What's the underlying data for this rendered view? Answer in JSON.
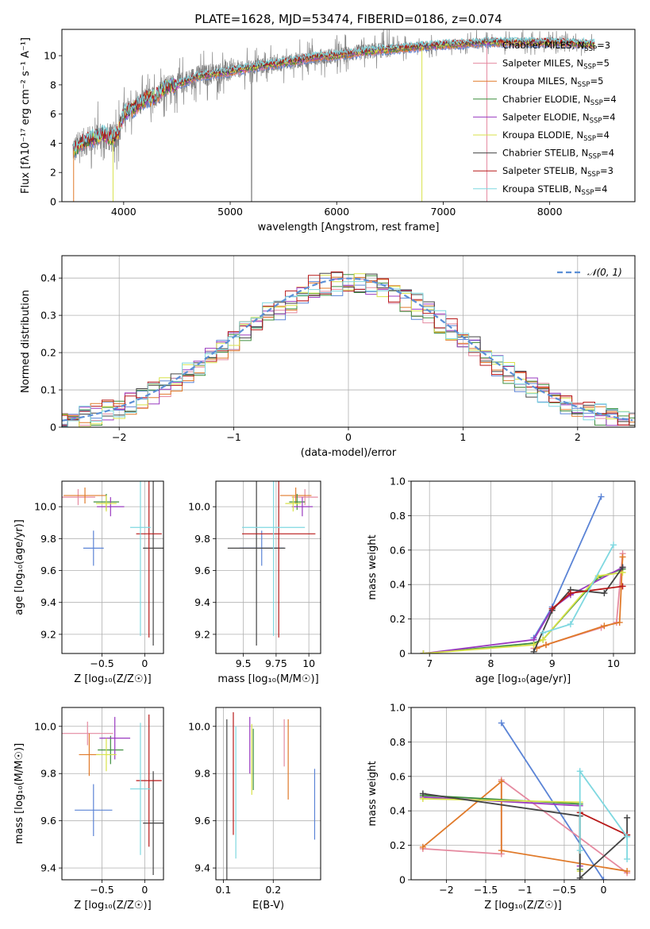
{
  "figure": {
    "title": "PLATE=1628, MJD=53474, FIBERID=0186, z=0.074"
  },
  "colors": {
    "Chabrier MILES": "#5b84d6",
    "Salpeter MILES": "#e58aa0",
    "Kroupa MILES": "#e07a2a",
    "Chabrier ELODIE": "#3f8f3f",
    "Salpeter ELODIE": "#9a3bc0",
    "Kroupa ELODIE": "#d8e24a",
    "Chabrier STELIB": "#444444",
    "Salpeter STELIB": "#b81a1a",
    "Kroupa STELIB": "#7fd8e0",
    "data": "#808080"
  },
  "chart_data": [
    {
      "id": "spectrum",
      "type": "line",
      "title": "PLATE=1628, MJD=53474, FIBERID=0186, z=0.074",
      "xlabel": "wavelength [Angstrom, rest frame]",
      "ylabel": "Flux [fλ10⁻¹⁷ erg cm⁻² s⁻¹ A⁻¹]",
      "xlim": [
        3420,
        8800
      ],
      "ylim": [
        0,
        11.8
      ],
      "xticks": [
        4000,
        5000,
        6000,
        7000,
        8000
      ],
      "yticks": [
        0,
        2,
        4,
        6,
        8,
        10
      ],
      "legend_position": "right",
      "legend": [
        "Chabrier MILES, N_SSP=3",
        "Salpeter MILES, N_SSP=5",
        "Kroupa MILES, N_SSP=5",
        "Chabrier ELODIE, N_SSP=4",
        "Salpeter ELODIE, N_SSP=4",
        "Kroupa ELODIE, N_SSP=4",
        "Chabrier STELIB, N_SSP=4",
        "Salpeter STELIB, N_SSP=3",
        "Kroupa STELIB, N_SSP=4"
      ],
      "legend_keys": [
        "Chabrier MILES",
        "Salpeter MILES",
        "Kroupa MILES",
        "Chabrier ELODIE",
        "Salpeter ELODIE",
        "Kroupa ELODIE",
        "Chabrier STELIB",
        "Salpeter STELIB",
        "Kroupa STELIB"
      ],
      "continuum": {
        "x": [
          3550,
          3600,
          3700,
          3800,
          3900,
          3950,
          4000,
          4100,
          4200,
          4300,
          4400,
          4500,
          4600,
          4700,
          4800,
          5000,
          5200,
          5500,
          5800,
          6000,
          6300,
          6600,
          6900,
          7200,
          7400,
          7600,
          7800,
          8000,
          8200,
          8400
        ],
        "y": [
          3.6,
          4.0,
          4.3,
          4.6,
          4.3,
          4.8,
          6.0,
          6.4,
          7.0,
          7.2,
          7.9,
          8.0,
          8.3,
          8.6,
          8.7,
          8.9,
          9.2,
          9.5,
          9.9,
          10.0,
          10.3,
          10.5,
          10.7,
          10.8,
          10.9,
          10.9,
          10.9,
          10.9,
          10.85,
          10.8
        ]
      }
    },
    {
      "id": "residuals",
      "type": "line",
      "xlabel": "(data-model)/error",
      "ylabel": "Normed distribution",
      "xlim": [
        -2.5,
        2.5
      ],
      "ylim": [
        0,
        0.46
      ],
      "xticks": [
        -2,
        -1,
        0,
        1,
        2
      ],
      "yticks": [
        0.0,
        0.1,
        0.2,
        0.3,
        0.4
      ],
      "legend": [
        "𝒩(0, 1)"
      ],
      "legend_position": "top-right",
      "gaussian": {
        "mean": 0,
        "sigma": 1
      },
      "bin_width": 0.1
    },
    {
      "id": "age_vs_Z",
      "type": "scatter",
      "xlabel": "Z [log₁₀(Z/Z☉)]",
      "ylabel": "age  [log₁₀(age/yr)]",
      "xlim": [
        -0.97,
        0.22
      ],
      "ylim": [
        9.08,
        10.16
      ],
      "xticks": [
        -0.5,
        0.0
      ],
      "yticks": [
        9.2,
        9.4,
        9.6,
        9.8,
        10.0
      ],
      "points": [
        {
          "s": "Chabrier MILES",
          "x": -0.6,
          "xe": 0.12,
          "y": 9.74,
          "ye": 0.11
        },
        {
          "s": "Salpeter MILES",
          "x": -0.78,
          "xe": 0.2,
          "y": 10.06,
          "ye": 0.05
        },
        {
          "s": "Kroupa MILES",
          "x": -0.7,
          "xe": 0.25,
          "y": 10.07,
          "ye": 0.05
        },
        {
          "s": "Chabrier ELODIE",
          "x": -0.45,
          "xe": 0.15,
          "y": 10.03,
          "ye": 0.05
        },
        {
          "s": "Salpeter ELODIE",
          "x": -0.4,
          "xe": 0.16,
          "y": 10.0,
          "ye": 0.06
        },
        {
          "s": "Kroupa ELODIE",
          "x": -0.45,
          "xe": 0.12,
          "y": 10.02,
          "ye": 0.05
        },
        {
          "s": "Chabrier STELIB",
          "x": 0.1,
          "xe": 0.12,
          "y": 9.74,
          "ye": 0.61
        },
        {
          "s": "Salpeter STELIB",
          "x": 0.05,
          "xe": 0.15,
          "y": 9.83,
          "ye": 0.65
        },
        {
          "s": "Kroupa STELIB",
          "x": -0.05,
          "xe": 0.12,
          "y": 9.87,
          "ye": 0.68
        }
      ]
    },
    {
      "id": "age_vs_mass",
      "type": "scatter",
      "xlabel": "mass [log₁₀(M/M☉)]",
      "ylabel": "",
      "xlim": [
        9.29,
        10.09
      ],
      "ylim": [
        9.08,
        10.16
      ],
      "xticks": [
        9.5,
        9.75,
        10.0
      ],
      "yticks": [
        9.2,
        9.4,
        9.6,
        9.8,
        10.0
      ],
      "points": [
        {
          "s": "Chabrier MILES",
          "x": 9.64,
          "xe": 0.17,
          "y": 9.74,
          "ye": 0.11
        },
        {
          "s": "Salpeter MILES",
          "x": 9.97,
          "xe": 0.1,
          "y": 10.06,
          "ye": 0.05
        },
        {
          "s": "Kroupa MILES",
          "x": 9.9,
          "xe": 0.12,
          "y": 10.07,
          "ye": 0.05
        },
        {
          "s": "Chabrier ELODIE",
          "x": 9.91,
          "xe": 0.06,
          "y": 10.03,
          "ye": 0.05
        },
        {
          "s": "Salpeter ELODIE",
          "x": 9.95,
          "xe": 0.08,
          "y": 10.0,
          "ye": 0.06
        },
        {
          "s": "Kroupa ELODIE",
          "x": 9.88,
          "xe": 0.06,
          "y": 10.02,
          "ye": 0.05
        },
        {
          "s": "Chabrier STELIB",
          "x": 9.6,
          "xe": 0.22,
          "y": 9.74,
          "ye": 0.61
        },
        {
          "s": "Salpeter STELIB",
          "x": 9.77,
          "xe": 0.28,
          "y": 9.83,
          "ye": 0.65
        },
        {
          "s": "Kroupa STELIB",
          "x": 9.73,
          "xe": 0.24,
          "y": 9.87,
          "ye": 0.68
        }
      ]
    },
    {
      "id": "weight_vs_age",
      "type": "line",
      "xlabel": "age  [log₁₀(age/yr)]",
      "ylabel": "mass weight",
      "xlim": [
        6.7,
        10.35
      ],
      "ylim": [
        0,
        1.0
      ],
      "xticks": [
        7,
        8,
        9,
        10
      ],
      "yticks": [
        0.0,
        0.2,
        0.4,
        0.6,
        0.8,
        1.0
      ],
      "series": [
        {
          "s": "Chabrier MILES",
          "x": [
            8.7,
            9.0,
            9.8
          ],
          "y": [
            0.09,
            0.27,
            0.91
          ]
        },
        {
          "s": "Salpeter MILES",
          "x": [
            8.7,
            8.9,
            9.8,
            10.05,
            10.15
          ],
          "y": [
            0.03,
            0.05,
            0.15,
            0.18,
            0.58
          ]
        },
        {
          "s": "Kroupa MILES",
          "x": [
            8.75,
            8.9,
            9.85,
            10.1,
            10.15
          ],
          "y": [
            0.03,
            0.05,
            0.16,
            0.18,
            0.56
          ]
        },
        {
          "s": "Chabrier ELODIE",
          "x": [
            6.9,
            8.7,
            8.85,
            9.75,
            10.15
          ],
          "y": [
            0.0,
            0.06,
            0.08,
            0.44,
            0.49
          ]
        },
        {
          "s": "Salpeter ELODIE",
          "x": [
            6.9,
            8.7,
            9.0,
            9.3,
            10.15
          ],
          "y": [
            0.0,
            0.08,
            0.26,
            0.34,
            0.5
          ]
        },
        {
          "s": "Kroupa ELODIE",
          "x": [
            6.9,
            8.7,
            8.85,
            9.75,
            10.15
          ],
          "y": [
            0.0,
            0.05,
            0.08,
            0.45,
            0.47
          ]
        },
        {
          "s": "Chabrier STELIB",
          "x": [
            8.7,
            9.0,
            9.3,
            9.85,
            10.15
          ],
          "y": [
            0.01,
            0.25,
            0.37,
            0.35,
            0.5
          ]
        },
        {
          "s": "Salpeter STELIB",
          "x": [
            9.0,
            9.3,
            10.15
          ],
          "y": [
            0.26,
            0.35,
            0.39
          ]
        },
        {
          "s": "Kroupa STELIB",
          "x": [
            8.85,
            9.3,
            10.0
          ],
          "y": [
            0.12,
            0.17,
            0.63
          ]
        }
      ]
    },
    {
      "id": "mass_vs_Z",
      "type": "scatter",
      "xlabel": "Z [log₁₀(Z/Z☉)]",
      "ylabel": "mass [log₁₀(M/M☉)]",
      "xlim": [
        -0.97,
        0.22
      ],
      "ylim": [
        9.35,
        10.08
      ],
      "xticks": [
        -0.5,
        0.0
      ],
      "yticks": [
        9.4,
        9.6,
        9.8,
        10.0
      ],
      "points": [
        {
          "s": "Chabrier MILES",
          "x": -0.6,
          "xe": 0.22,
          "y": 9.645,
          "ye": 0.11
        },
        {
          "s": "Salpeter MILES",
          "x": -0.67,
          "xe": 0.3,
          "y": 9.97,
          "ye": 0.05
        },
        {
          "s": "Kroupa MILES",
          "x": -0.65,
          "xe": 0.12,
          "y": 9.88,
          "ye": 0.09
        },
        {
          "s": "Chabrier ELODIE",
          "x": -0.4,
          "xe": 0.15,
          "y": 9.9,
          "ye": 0.06
        },
        {
          "s": "Salpeter ELODIE",
          "x": -0.35,
          "xe": 0.18,
          "y": 9.95,
          "ye": 0.09
        },
        {
          "s": "Kroupa ELODIE",
          "x": -0.45,
          "xe": 0.12,
          "y": 9.88,
          "ye": 0.07
        },
        {
          "s": "Chabrier STELIB",
          "x": 0.1,
          "xe": 0.12,
          "y": 9.59,
          "ye": 0.22
        },
        {
          "s": "Salpeter STELIB",
          "x": 0.05,
          "xe": 0.15,
          "y": 9.77,
          "ye": 0.28
        },
        {
          "s": "Kroupa STELIB",
          "x": -0.05,
          "xe": 0.12,
          "y": 9.735,
          "ye": 0.28
        }
      ]
    },
    {
      "id": "mass_vs_ebv",
      "type": "scatter",
      "xlabel": "E(B-V)",
      "ylabel": "",
      "xlim": [
        0.085,
        0.295
      ],
      "ylim": [
        9.35,
        10.08
      ],
      "xticks": [
        0.1,
        0.2
      ],
      "yticks": [
        9.4,
        9.6,
        9.8,
        10.0
      ],
      "points": [
        {
          "s": "Chabrier MILES",
          "x": 0.283,
          "y": 9.67,
          "ye": 0.15
        },
        {
          "s": "Salpeter MILES",
          "x": 0.222,
          "y": 9.93,
          "ye": 0.1
        },
        {
          "s": "Kroupa MILES",
          "x": 0.23,
          "y": 9.86,
          "ye": 0.17
        },
        {
          "s": "Chabrier ELODIE",
          "x": 0.16,
          "y": 9.86,
          "ye": 0.13
        },
        {
          "s": "Salpeter ELODIE",
          "x": 0.153,
          "y": 9.92,
          "ye": 0.12
        },
        {
          "s": "Kroupa ELODIE",
          "x": 0.157,
          "y": 9.86,
          "ye": 0.15
        },
        {
          "s": "Chabrier STELIB",
          "x": 0.107,
          "y": 9.62,
          "ye": 0.41
        },
        {
          "s": "Salpeter STELIB",
          "x": 0.12,
          "y": 9.8,
          "ye": 0.26
        },
        {
          "s": "Kroupa STELIB",
          "x": 0.125,
          "y": 9.72,
          "ye": 0.28
        }
      ]
    },
    {
      "id": "weight_vs_Z",
      "type": "line",
      "xlabel": "Z [log₁₀(Z/Z☉)]",
      "ylabel": "mass weight",
      "xlim": [
        -2.45,
        0.4
      ],
      "ylim": [
        0,
        1.0
      ],
      "xticks": [
        -2.0,
        -1.5,
        -1.0,
        -0.5,
        0.0
      ],
      "yticks": [
        0.0,
        0.2,
        0.4,
        0.6,
        0.8,
        1.0
      ],
      "series": [
        {
          "s": "Chabrier MILES",
          "x": [
            -1.3,
            0.0
          ],
          "y": [
            0.91,
            0.0
          ]
        },
        {
          "s": "Salpeter MILES",
          "x": [
            -2.3,
            -1.3,
            -1.3,
            0.3
          ],
          "y": [
            0.18,
            0.15,
            0.58,
            0.04
          ]
        },
        {
          "s": "Kroupa MILES",
          "x": [
            -2.3,
            -1.3,
            -1.3,
            0.3
          ],
          "y": [
            0.19,
            0.57,
            0.17,
            0.05
          ]
        },
        {
          "s": "Chabrier ELODIE",
          "x": [
            -2.3,
            -0.3,
            -0.3
          ],
          "y": [
            0.49,
            0.44,
            0.06
          ]
        },
        {
          "s": "Salpeter ELODIE",
          "x": [
            -2.3,
            -0.3,
            -0.3
          ],
          "y": [
            0.48,
            0.43,
            0.08
          ]
        },
        {
          "s": "Kroupa ELODIE",
          "x": [
            -2.3,
            -0.3,
            -0.3
          ],
          "y": [
            0.47,
            0.45,
            0.05
          ]
        },
        {
          "s": "Chabrier STELIB",
          "x": [
            -2.3,
            -0.3,
            -0.3,
            0.3,
            0.3
          ],
          "y": [
            0.5,
            0.37,
            0.01,
            0.26,
            0.36
          ]
        },
        {
          "s": "Salpeter STELIB",
          "x": [
            -0.3,
            0.3
          ],
          "y": [
            0.39,
            0.26
          ]
        },
        {
          "s": "Kroupa STELIB",
          "x": [
            -0.3,
            -0.3,
            0.3,
            0.3
          ],
          "y": [
            0.17,
            0.63,
            0.25,
            0.12
          ]
        }
      ]
    }
  ]
}
